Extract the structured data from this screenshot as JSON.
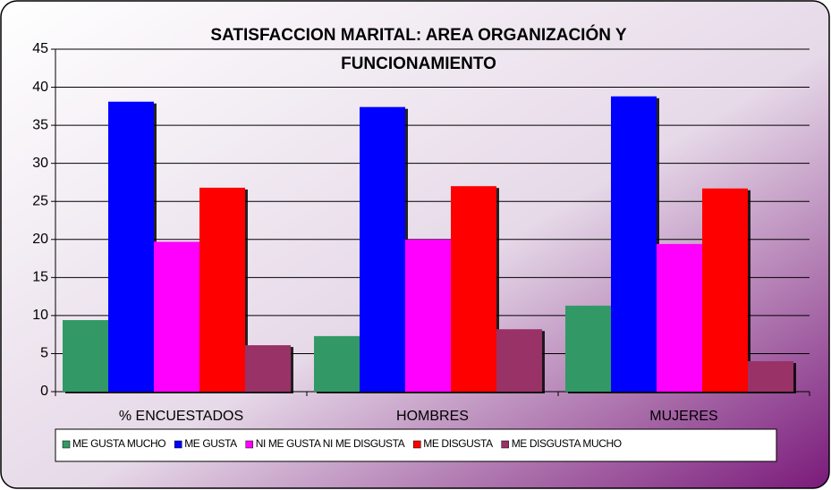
{
  "chart_data": {
    "type": "bar",
    "title": "SATISFACCION MARITAL: AREA ORGANIZACIÓN Y FUNCIONAMIENTO",
    "categories": [
      "% ENCUESTADOS",
      "HOMBRES",
      "MUJERES"
    ],
    "series": [
      {
        "name": "ME GUSTA MUCHO",
        "color": "#339966",
        "values": [
          9.4,
          7.3,
          11.3
        ]
      },
      {
        "name": "ME GUSTA",
        "color": "#0000ff",
        "values": [
          38.1,
          37.4,
          38.8
        ]
      },
      {
        "name": "NI ME GUSTA NI ME DISGUSTA",
        "color": "#ff00ff",
        "values": [
          19.7,
          20,
          19.4
        ]
      },
      {
        "name": "ME DISGUSTA",
        "color": "#ff0000",
        "values": [
          26.8,
          27,
          26.7
        ]
      },
      {
        "name": "ME DISGUSTA MUCHO",
        "color": "#993366",
        "values": [
          6.1,
          8.2,
          4
        ]
      }
    ],
    "ylim": [
      0,
      45
    ],
    "yticks": [
      0,
      5,
      10,
      15,
      20,
      25,
      30,
      35,
      40,
      45
    ],
    "grid": true,
    "legend": "bottom"
  }
}
